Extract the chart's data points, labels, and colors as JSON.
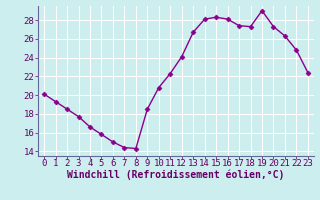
{
  "x": [
    0,
    1,
    2,
    3,
    4,
    5,
    6,
    7,
    8,
    9,
    10,
    11,
    12,
    13,
    14,
    15,
    16,
    17,
    18,
    19,
    20,
    21,
    22,
    23
  ],
  "y": [
    20.1,
    19.3,
    18.5,
    17.7,
    16.6,
    15.8,
    15.0,
    14.4,
    14.3,
    18.5,
    20.8,
    22.3,
    24.1,
    26.7,
    28.1,
    28.3,
    28.1,
    27.4,
    27.3,
    29.0,
    27.3,
    26.3,
    24.8,
    22.4
  ],
  "line_color": "#8b008b",
  "marker": "D",
  "marker_size": 2.5,
  "bg_color": "#cceeee",
  "grid_color": "#aadddd",
  "spine_color": "#666699",
  "tick_color": "#660066",
  "xlabel": "Windchill (Refroidissement éolien,°C)",
  "ylim": [
    13.5,
    29.5
  ],
  "yticks": [
    14,
    16,
    18,
    20,
    22,
    24,
    26,
    28
  ],
  "xlim": [
    -0.5,
    23.5
  ],
  "xticks": [
    0,
    1,
    2,
    3,
    4,
    5,
    6,
    7,
    8,
    9,
    10,
    11,
    12,
    13,
    14,
    15,
    16,
    17,
    18,
    19,
    20,
    21,
    22,
    23
  ],
  "font_size": 6.5,
  "label_font_size": 7
}
